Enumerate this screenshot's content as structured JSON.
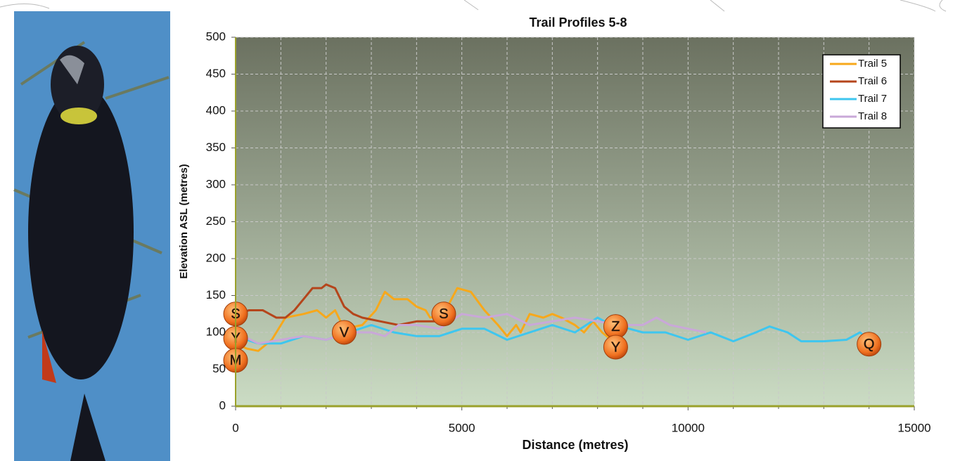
{
  "chart_data": {
    "type": "line",
    "title": "Trail Profiles 5-8",
    "xlabel": "Distance (metres)",
    "ylabel": "Elevation ASL (metres)",
    "xlim": [
      0,
      15000
    ],
    "xticks": [
      0,
      5000,
      10000,
      15000
    ],
    "ylim": [
      0,
      500
    ],
    "yticks": [
      0,
      50,
      100,
      150,
      200,
      250,
      300,
      350,
      400,
      450,
      500
    ],
    "grid": true,
    "legend": "top-right",
    "series": [
      {
        "name": "Trail 5",
        "color": "#f7a81b",
        "x": [
          0,
          250,
          500,
          800,
          1100,
          1500,
          1800,
          2000,
          2200,
          2400,
          2800,
          3100,
          3300,
          3500,
          3800,
          4000,
          4200,
          4300,
          4600,
          4900,
          5200,
          5500,
          5800,
          6000,
          6200,
          6300,
          6500,
          6800,
          7000,
          7200,
          7500,
          7700,
          7900,
          8100,
          8300,
          8450
        ],
        "values": [
          85,
          78,
          75,
          90,
          120,
          125,
          130,
          120,
          130,
          105,
          110,
          130,
          155,
          145,
          145,
          135,
          130,
          120,
          125,
          160,
          155,
          130,
          110,
          95,
          110,
          100,
          125,
          120,
          125,
          120,
          110,
          100,
          115,
          100,
          90,
          80
        ]
      },
      {
        "name": "Trail 6",
        "color": "#b5451b",
        "x": [
          0,
          300,
          600,
          900,
          1100,
          1300,
          1500,
          1700,
          1900,
          2000,
          2200,
          2400,
          2600,
          2800,
          3200,
          3600,
          4000,
          4400,
          4600
        ],
        "values": [
          125,
          130,
          130,
          120,
          120,
          130,
          145,
          160,
          160,
          165,
          160,
          135,
          125,
          120,
          115,
          110,
          115,
          115,
          120
        ]
      },
      {
        "name": "Trail 7",
        "color": "#3ec6ef",
        "x": [
          0,
          500,
          1000,
          1500,
          2000,
          2500,
          3000,
          3500,
          4000,
          4500,
          5000,
          5500,
          6000,
          6500,
          7000,
          7500,
          8000,
          8300,
          8700,
          9000,
          9500,
          10000,
          10500,
          11000,
          11500,
          11800,
          12200,
          12500,
          13000,
          13500,
          13800,
          14000
        ],
        "values": [
          95,
          85,
          85,
          95,
          90,
          100,
          110,
          100,
          95,
          95,
          105,
          105,
          90,
          100,
          110,
          100,
          120,
          110,
          105,
          100,
          100,
          90,
          100,
          88,
          100,
          108,
          100,
          88,
          88,
          90,
          100,
          90
        ]
      },
      {
        "name": "Trail 8",
        "color": "#c9a8d8",
        "x": [
          0,
          500,
          1000,
          1500,
          2000,
          2500,
          3000,
          3300,
          3600,
          4000,
          4500,
          5000,
          5500,
          6000,
          6500,
          7000,
          7500,
          8000,
          8500,
          9000,
          9300,
          9600,
          10000,
          10400
        ],
        "values": [
          100,
          85,
          90,
          95,
          90,
          100,
          100,
          95,
          110,
          110,
          105,
          125,
          120,
          125,
          110,
          115,
          120,
          115,
          110,
          110,
          120,
          110,
          105,
          100
        ]
      }
    ],
    "annotations": [
      {
        "text": "S",
        "x": 0,
        "y": 125
      },
      {
        "text": "Y",
        "x": 0,
        "y": 92
      },
      {
        "text": "M",
        "x": 0,
        "y": 62
      },
      {
        "text": "V",
        "x": 2400,
        "y": 100
      },
      {
        "text": "S",
        "x": 4600,
        "y": 125
      },
      {
        "text": "Z",
        "x": 8400,
        "y": 108
      },
      {
        "text": "Y",
        "x": 8400,
        "y": 80
      },
      {
        "text": "Q",
        "x": 14000,
        "y": 84
      }
    ]
  }
}
